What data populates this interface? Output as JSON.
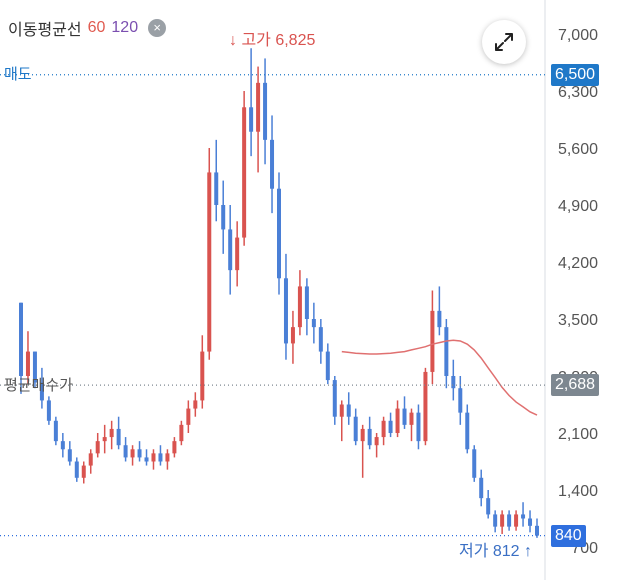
{
  "legend": {
    "title": "이동평균선",
    "ma_short": "60",
    "ma_long": "120",
    "close_icon": "×"
  },
  "buttons": {
    "expand_icon": "expand-arrows"
  },
  "lines": {
    "sell": {
      "label": "매도",
      "value": 6500,
      "tag": "6,500",
      "color": "#1f78c8"
    },
    "avg_price": {
      "label": "평균매수가",
      "value": 2688,
      "tag": "2,688",
      "color": "#7d8790"
    },
    "current": {
      "value": 840,
      "tag": "840",
      "color": "#2f6fde"
    }
  },
  "annotations": {
    "high": {
      "text": "고가 6,825",
      "value": 6825,
      "color": "#d9534f"
    },
    "low": {
      "text": "저가 812",
      "value": 812,
      "color": "#3a6fc4"
    }
  },
  "colors": {
    "up": "#d9534f",
    "down": "#4a7fd6",
    "ma": "#e07070"
  },
  "chart_data": {
    "type": "candlestick",
    "title": "",
    "y_ticks": [
      "7,000",
      "6,300",
      "5,600",
      "4,900",
      "4,200",
      "3,500",
      "2,800",
      "2,100",
      "1,400",
      "700"
    ],
    "y_tick_values": [
      7000,
      6300,
      5600,
      4900,
      4200,
      3500,
      2800,
      2100,
      1400,
      700
    ],
    "ylim": [
      650,
      7100
    ],
    "candles": [
      [
        3700,
        3700,
        2580,
        2800
      ],
      [
        2800,
        3350,
        2700,
        3100
      ],
      [
        3100,
        3100,
        2650,
        2720
      ],
      [
        2720,
        2900,
        2400,
        2500
      ],
      [
        2500,
        2550,
        2200,
        2250
      ],
      [
        2250,
        2300,
        1950,
        2000
      ],
      [
        2000,
        2100,
        1800,
        1900
      ],
      [
        1900,
        2000,
        1700,
        1750
      ],
      [
        1750,
        1800,
        1500,
        1550
      ],
      [
        1550,
        1750,
        1480,
        1700
      ],
      [
        1700,
        1900,
        1600,
        1850
      ],
      [
        1850,
        2100,
        1800,
        2000
      ],
      [
        2000,
        2200,
        1850,
        2050
      ],
      [
        2050,
        2250,
        1900,
        2150
      ],
      [
        2150,
        2300,
        1900,
        1950
      ],
      [
        1950,
        2050,
        1750,
        1800
      ],
      [
        1800,
        1950,
        1700,
        1900
      ],
      [
        1900,
        2000,
        1750,
        1800
      ],
      [
        1800,
        1900,
        1700,
        1750
      ],
      [
        1750,
        1900,
        1650,
        1850
      ],
      [
        1850,
        1950,
        1700,
        1750
      ],
      [
        1750,
        1900,
        1650,
        1850
      ],
      [
        1850,
        2050,
        1800,
        2000
      ],
      [
        2000,
        2250,
        1950,
        2200
      ],
      [
        2200,
        2500,
        2100,
        2400
      ],
      [
        2400,
        2600,
        2300,
        2500
      ],
      [
        2500,
        3300,
        2400,
        3100
      ],
      [
        3100,
        5600,
        3000,
        5300
      ],
      [
        5300,
        5700,
        4700,
        4900
      ],
      [
        4900,
        5200,
        4300,
        4600
      ],
      [
        4600,
        4900,
        3800,
        4100
      ],
      [
        4100,
        4700,
        3900,
        4500
      ],
      [
        4500,
        6300,
        4400,
        6100
      ],
      [
        6100,
        6825,
        5500,
        5800
      ],
      [
        5800,
        6600,
        5300,
        6400
      ],
      [
        6400,
        6700,
        5400,
        5700
      ],
      [
        5700,
        6000,
        4800,
        5100
      ],
      [
        5100,
        5300,
        3800,
        4000
      ],
      [
        4000,
        4300,
        3000,
        3200
      ],
      [
        3200,
        3600,
        2950,
        3400
      ],
      [
        3400,
        4100,
        3300,
        3900
      ],
      [
        3900,
        4000,
        3300,
        3500
      ],
      [
        3500,
        3700,
        3200,
        3400
      ],
      [
        3400,
        3500,
        2950,
        3100
      ],
      [
        3100,
        3200,
        2700,
        2750
      ],
      [
        2750,
        2800,
        2200,
        2300
      ],
      [
        2300,
        2500,
        2000,
        2450
      ],
      [
        2450,
        2600,
        2200,
        2300
      ],
      [
        2300,
        2400,
        1950,
        2000
      ],
      [
        2000,
        2200,
        1550,
        2150
      ],
      [
        2150,
        2300,
        1900,
        1950
      ],
      [
        1950,
        2100,
        1800,
        2050
      ],
      [
        2050,
        2300,
        1950,
        2250
      ],
      [
        2250,
        2350,
        2050,
        2100
      ],
      [
        2100,
        2500,
        2050,
        2400
      ],
      [
        2400,
        2550,
        2150,
        2200
      ],
      [
        2200,
        2400,
        2000,
        2350
      ],
      [
        2350,
        2450,
        1900,
        2000
      ],
      [
        2000,
        2900,
        1950,
        2850
      ],
      [
        2850,
        3850,
        2700,
        3600
      ],
      [
        3600,
        3900,
        3300,
        3400
      ],
      [
        3400,
        3500,
        2650,
        2800
      ],
      [
        2800,
        3000,
        2500,
        2650
      ],
      [
        2650,
        2800,
        2200,
        2350
      ],
      [
        2350,
        2450,
        1850,
        1900
      ],
      [
        1900,
        1950,
        1500,
        1550
      ],
      [
        1550,
        1650,
        1200,
        1300
      ],
      [
        1300,
        1400,
        1050,
        1100
      ],
      [
        1100,
        1150,
        880,
        950
      ],
      [
        950,
        1150,
        860,
        1100
      ],
      [
        1100,
        1150,
        900,
        950
      ],
      [
        950,
        1150,
        900,
        1100
      ],
      [
        1100,
        1250,
        950,
        1050
      ],
      [
        1050,
        1150,
        880,
        960
      ],
      [
        960,
        1050,
        812,
        840
      ]
    ],
    "ma_series": {
      "name": "60",
      "start_index": 46,
      "values": [
        3100,
        3090,
        3080,
        3075,
        3070,
        3070,
        3075,
        3080,
        3090,
        3100,
        3120,
        3140,
        3160,
        3190,
        3210,
        3230,
        3240,
        3230,
        3190,
        3120,
        3020,
        2900,
        2780,
        2660,
        2560,
        2480,
        2420,
        2360,
        2320
      ]
    }
  }
}
